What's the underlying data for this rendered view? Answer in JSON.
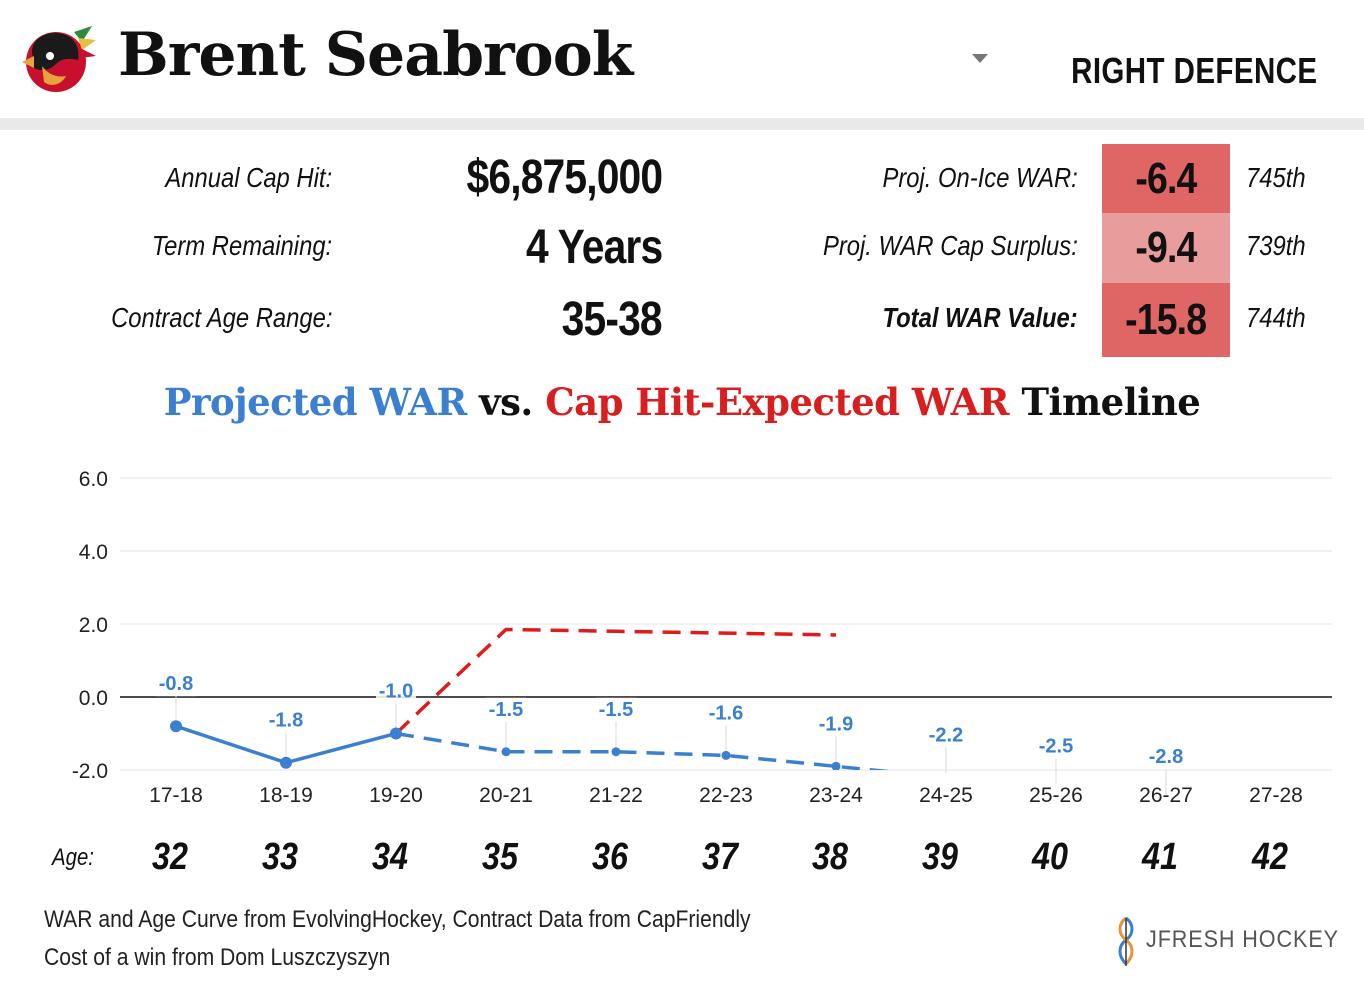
{
  "header": {
    "player_name": "Brent Seabrook",
    "position": "RIGHT DEFENCE"
  },
  "contract": {
    "cap_hit_label": "Annual Cap Hit:",
    "cap_hit_value": "$6,875,000",
    "term_label": "Term Remaining:",
    "term_value": "4 Years",
    "age_range_label": "Contract Age Range:",
    "age_range_value": "35-38"
  },
  "metrics": [
    {
      "label": "Proj. On-Ice WAR:",
      "value": "-6.4",
      "rank": "745th",
      "color": "#e06666"
    },
    {
      "label": "Proj. WAR Cap Surplus:",
      "value": "-9.4",
      "rank": "739th",
      "color": "#e89c9c"
    },
    {
      "label": "Total WAR Value:",
      "value": "-15.8",
      "rank": "744th",
      "color": "#e06666"
    }
  ],
  "chart_title": {
    "part1": "Projected WAR",
    "part2": " vs. ",
    "part3": "Cap Hit-Expected WAR",
    "part4": " Timeline"
  },
  "chart_data": {
    "type": "line",
    "categories": [
      "17-18",
      "18-19",
      "19-20",
      "20-21",
      "21-22",
      "22-23",
      "23-24",
      "24-25",
      "25-26",
      "26-27",
      "27-28"
    ],
    "ylim": [
      -2.0,
      6.0
    ],
    "yticks": [
      "6.0",
      "4.0",
      "2.0",
      "0.0",
      "-2.0"
    ],
    "grid": true,
    "series": [
      {
        "name": "Projected WAR",
        "color": "#3a7fd0",
        "values": [
          -0.8,
          -1.8,
          -1.0,
          -1.5,
          -1.5,
          -1.6,
          -1.9,
          -2.2,
          -2.5,
          -2.8,
          null
        ],
        "labels": [
          "-0.8",
          "-1.8",
          "-1.0",
          "-1.5",
          "-1.5",
          "-1.6",
          "-1.9",
          "-2.2",
          "-2.5",
          "-2.8",
          ""
        ],
        "actual_until_index": 2
      },
      {
        "name": "Cap Hit-Expected WAR",
        "color": "#e01b1b",
        "values": [
          null,
          null,
          -1.0,
          1.85,
          1.8,
          1.75,
          1.7,
          null,
          null,
          null,
          null
        ]
      }
    ]
  },
  "ages": {
    "label": "Age:",
    "values": [
      "32",
      "33",
      "34",
      "35",
      "36",
      "37",
      "38",
      "39",
      "40",
      "41",
      "42"
    ]
  },
  "footer": {
    "line1": "WAR and Age Curve from EvolvingHockey, Contract Data from CapFriendly",
    "line2": "Cost of a win from Dom Luszczyszyn",
    "brand": "JFRESH HOCKEY"
  }
}
